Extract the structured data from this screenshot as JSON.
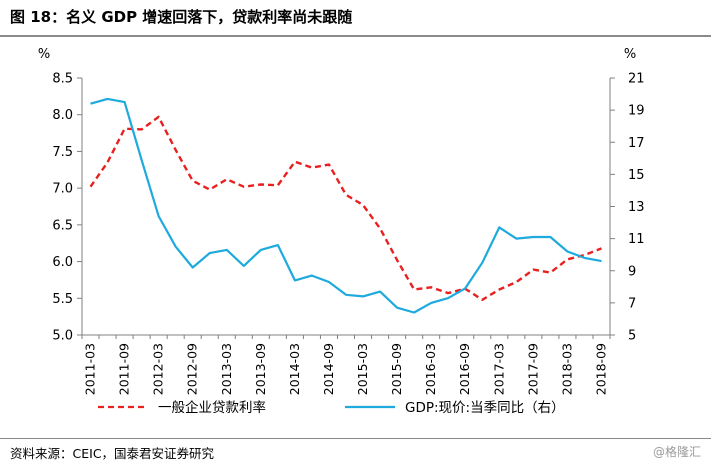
{
  "title": "图 18：名义 GDP 增速回落下，贷款利率尚未跟随",
  "source": "资料来源：CEIC，国泰君安证券研究",
  "watermark": "@格隆汇",
  "chart_data": {
    "type": "line",
    "left_axis": {
      "unit": "%",
      "min": 5.0,
      "max": 8.5,
      "ticks": [
        "5.0",
        "5.5",
        "6.0",
        "6.5",
        "7.0",
        "7.5",
        "8.0",
        "8.5"
      ]
    },
    "right_axis": {
      "unit": "%",
      "min": 5,
      "max": 21,
      "ticks": [
        "5",
        "7",
        "9",
        "11",
        "13",
        "15",
        "17",
        "19",
        "21"
      ]
    },
    "x_tick_labels": [
      "2011-03",
      "2011-09",
      "2012-03",
      "2012-09",
      "2013-03",
      "2013-09",
      "2014-03",
      "2014-09",
      "2015-03",
      "2015-09",
      "2016-03",
      "2016-09",
      "2017-03",
      "2017-09",
      "2018-03",
      "2018-09"
    ],
    "x": [
      "2011-03",
      "2011-06",
      "2011-09",
      "2011-12",
      "2012-03",
      "2012-06",
      "2012-09",
      "2012-12",
      "2013-03",
      "2013-06",
      "2013-09",
      "2013-12",
      "2014-03",
      "2014-06",
      "2014-09",
      "2014-12",
      "2015-03",
      "2015-06",
      "2015-09",
      "2015-12",
      "2016-03",
      "2016-06",
      "2016-09",
      "2016-12",
      "2017-03",
      "2017-06",
      "2017-09",
      "2017-12",
      "2018-03",
      "2018-06",
      "2018-09"
    ],
    "series": [
      {
        "name": "一般企业贷款利率",
        "axis": "left",
        "color": "#e8201f",
        "dash": true,
        "values": [
          7.02,
          7.35,
          7.81,
          7.8,
          7.97,
          7.52,
          7.1,
          6.98,
          7.12,
          7.02,
          7.05,
          7.04,
          7.36,
          7.28,
          7.32,
          6.91,
          6.77,
          6.45,
          6.02,
          5.62,
          5.65,
          5.57,
          5.63,
          5.48,
          5.62,
          5.72,
          5.89,
          5.85,
          6.03,
          6.09,
          6.18
        ]
      },
      {
        "name": "GDP:现价:当季同比（右）",
        "axis": "right",
        "color": "#1eaadc",
        "dash": false,
        "values": [
          19.4,
          19.7,
          19.5,
          15.9,
          12.4,
          10.5,
          9.2,
          10.1,
          10.3,
          9.3,
          10.3,
          10.6,
          8.4,
          8.7,
          8.3,
          7.5,
          7.4,
          7.7,
          6.7,
          6.4,
          7.0,
          7.3,
          7.9,
          9.5,
          11.7,
          11.0,
          11.1,
          11.1,
          10.2,
          9.8,
          9.6
        ]
      }
    ]
  }
}
